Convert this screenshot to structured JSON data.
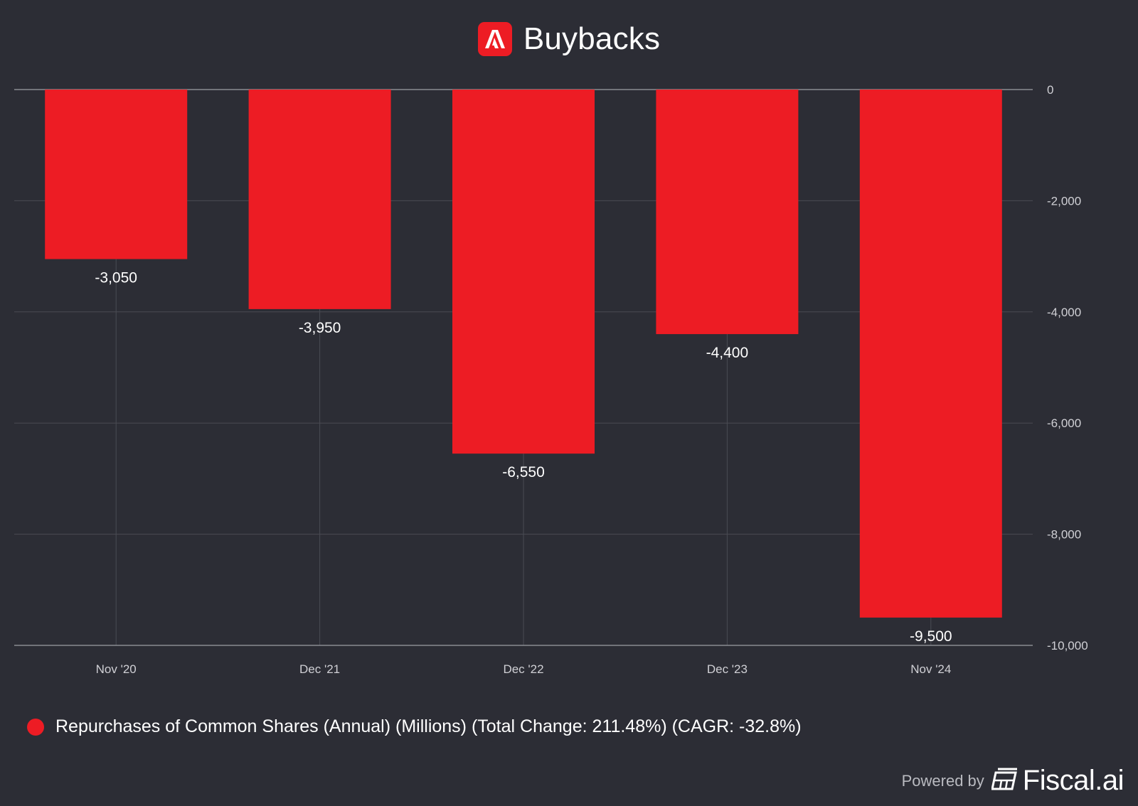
{
  "header": {
    "title": "Buybacks",
    "logo_icon": "adobe-logo-icon"
  },
  "chart_data": {
    "type": "bar",
    "categories": [
      "Nov '20",
      "Dec '21",
      "Dec '22",
      "Dec '23",
      "Nov '24"
    ],
    "values": [
      -3050,
      -3950,
      -6550,
      -4400,
      -9500
    ],
    "value_labels": [
      "-3,050",
      "-3,950",
      "-6,550",
      "-4,400",
      "-9,500"
    ],
    "yticks": [
      0,
      -2000,
      -4000,
      -6000,
      -8000,
      -10000
    ],
    "ytick_labels": [
      "0",
      "-2,000",
      "-4,000",
      "-6,000",
      "-8,000",
      "-10,000"
    ],
    "ylim": [
      -10000,
      0
    ],
    "y_axis_side": "right",
    "grid": true,
    "bar_color": "#ed1c24",
    "title": "Buybacks",
    "xlabel": "",
    "ylabel": ""
  },
  "legend": {
    "label": "Repurchases of Common Shares (Annual) (Millions) (Total Change: 211.48%) (CAGR: -32.8%)",
    "color": "#ed1c24"
  },
  "footer": {
    "powered_by": "Powered by",
    "brand": "Fiscal.ai",
    "brand_icon": "fiscal-logo-icon"
  },
  "colors": {
    "background": "#2c2d35",
    "grid": "#4a4b53",
    "axis_text": "#d0d0d5"
  }
}
